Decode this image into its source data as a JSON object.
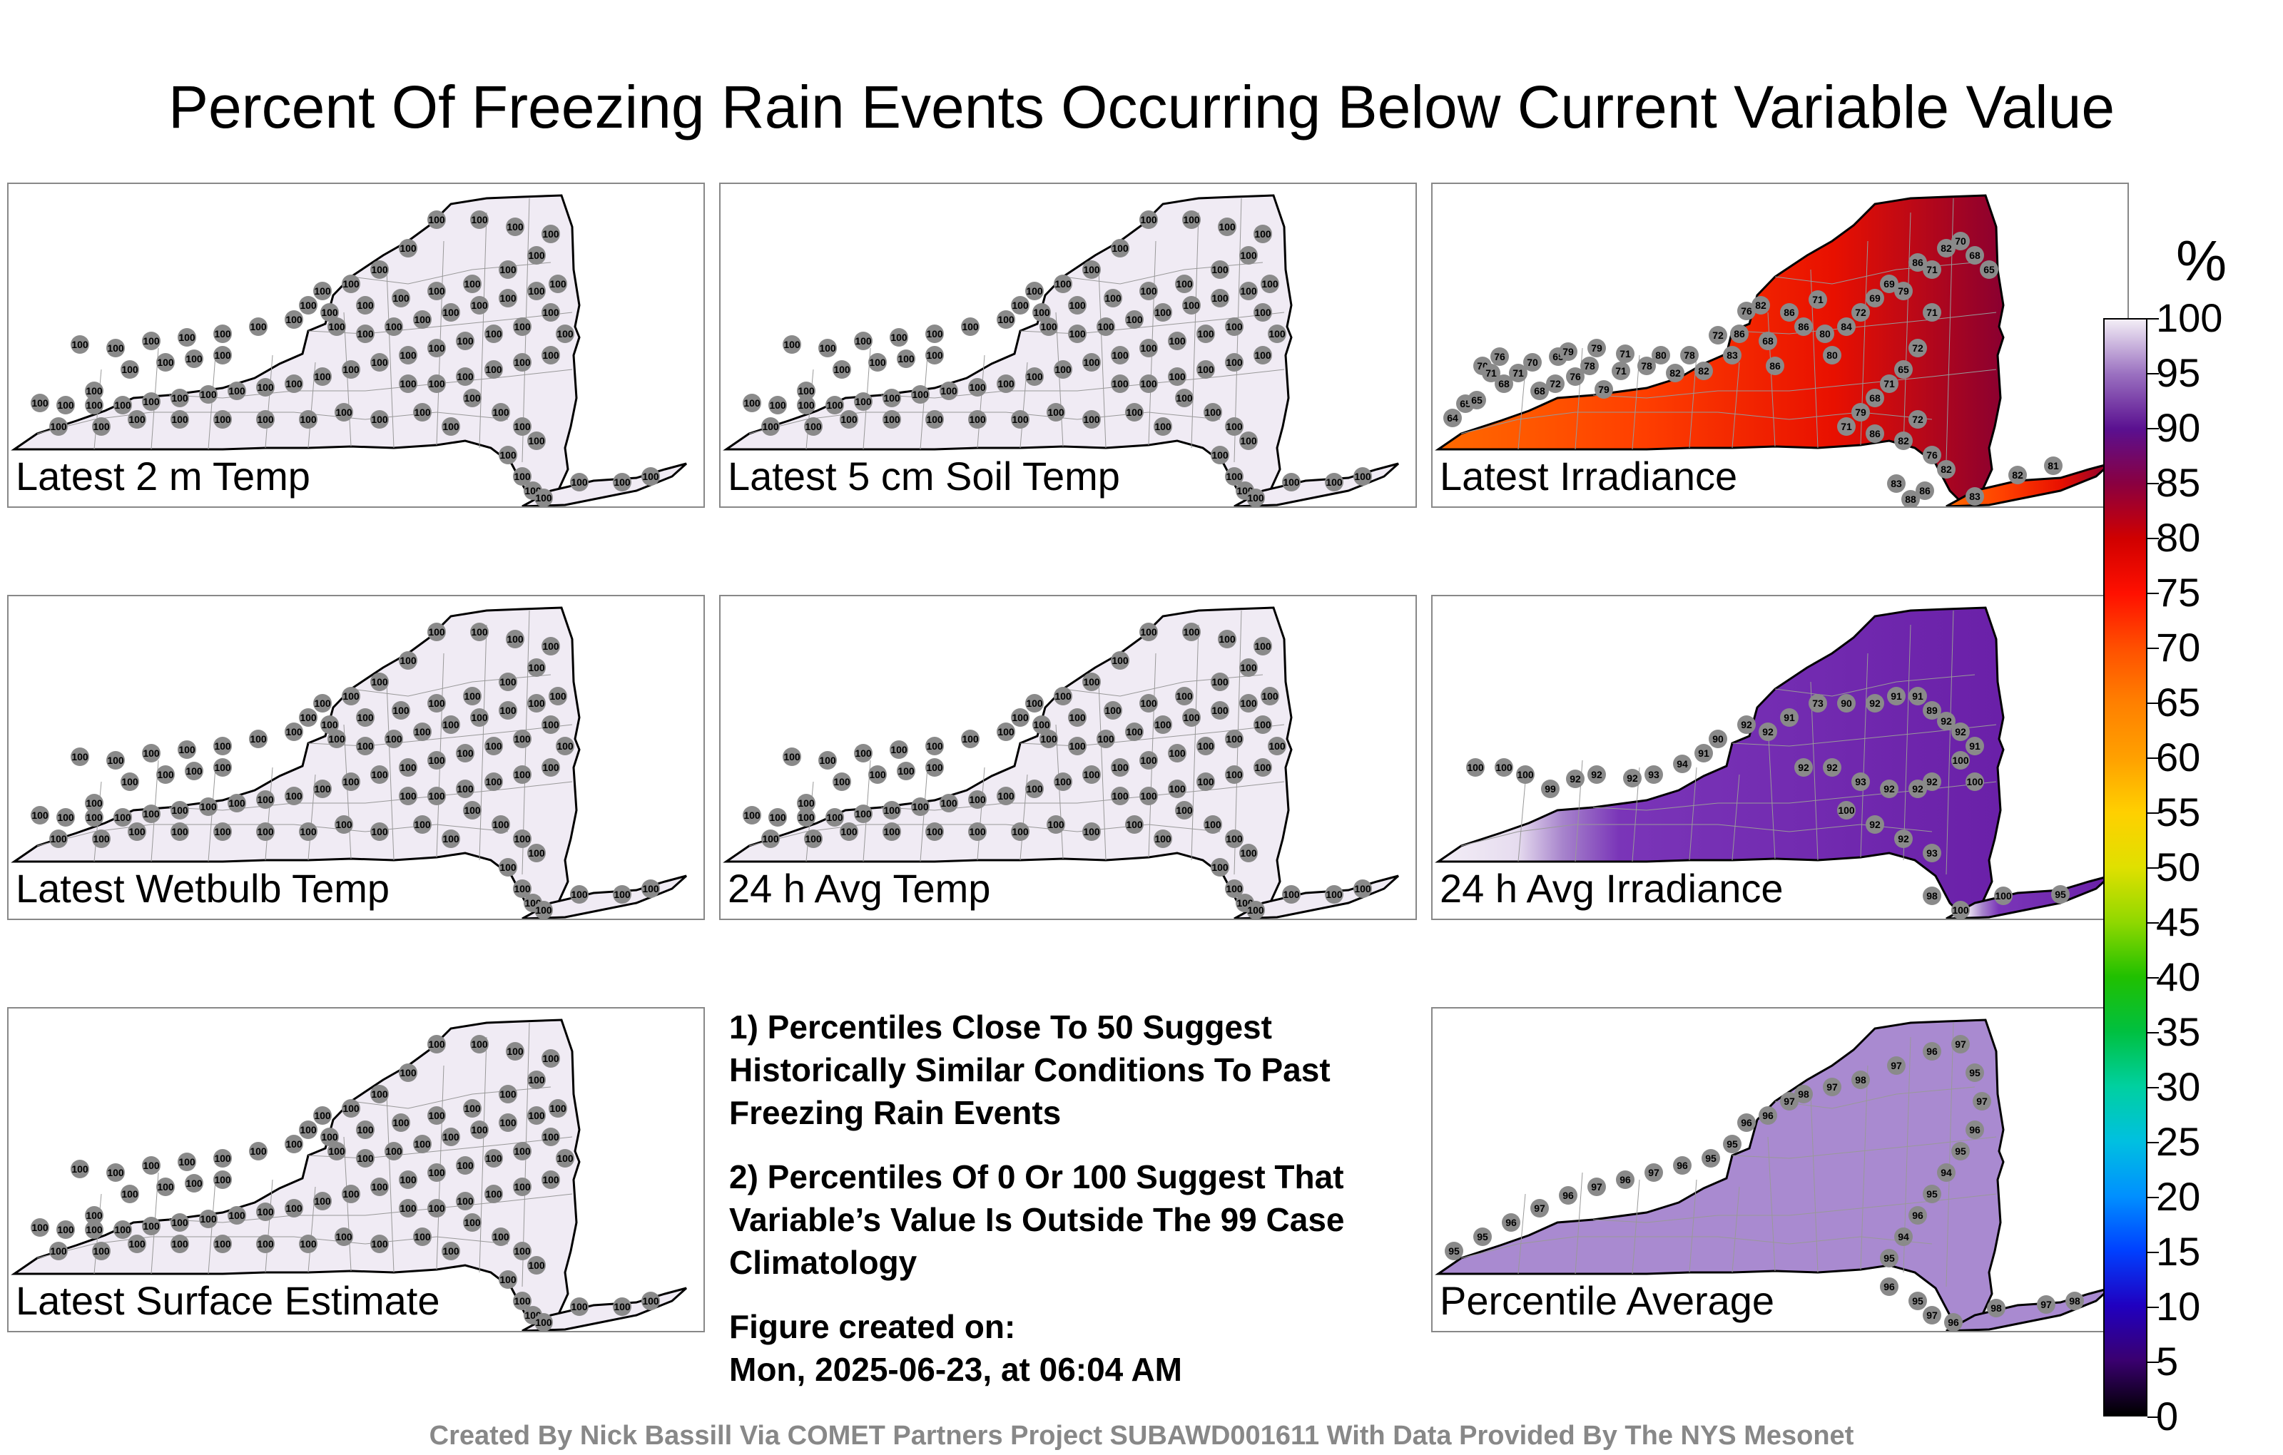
{
  "title": "Percent Of Freezing Rain Events Occurring Below Current Variable Value",
  "colors": {
    "low_fill": "#f0ebf4",
    "dot": "#8a8a8a",
    "state_border": "#000000",
    "county_line": "#999999"
  },
  "panels": [
    {
      "label": "Latest 2 m Temp",
      "field": "uniform",
      "station_value": "100"
    },
    {
      "label": "Latest 5 cm Soil Temp",
      "field": "uniform",
      "station_value": "100"
    },
    {
      "label": "Latest Irradiance",
      "field": "irradiance",
      "station_values": [
        "64",
        "65",
        "65",
        "70",
        "71",
        "76",
        "68",
        "71",
        "70",
        "68",
        "72",
        "65",
        "79",
        "76",
        "78",
        "79",
        "79",
        "71",
        "71",
        "78",
        "80",
        "82",
        "78",
        "82",
        "72",
        "83",
        "86",
        "76",
        "82",
        "68",
        "86",
        "86",
        "86",
        "71",
        "80",
        "80",
        "84",
        "72",
        "69",
        "69",
        "79",
        "86",
        "71",
        "82",
        "70",
        "68",
        "65",
        "71",
        "72",
        "65",
        "71",
        "68",
        "79",
        "71",
        "86",
        "82",
        "72",
        "76",
        "82",
        "83",
        "88",
        "86",
        "83",
        "82",
        "81"
      ]
    },
    {
      "label": "Latest Wetbulb Temp",
      "field": "uniform",
      "station_value": "100"
    },
    {
      "label": "24 h Avg Temp",
      "field": "uniform",
      "station_value": "100"
    },
    {
      "label": "24 h Avg Irradiance",
      "field": "avg_irradiance",
      "station_values": [
        "100",
        "100",
        "100",
        "99",
        "92",
        "92",
        "92",
        "93",
        "94",
        "91",
        "90",
        "92",
        "92",
        "91",
        "73",
        "90",
        "92",
        "91",
        "91",
        "89",
        "92",
        "92",
        "91",
        "92",
        "92",
        "93",
        "92",
        "92",
        "92",
        "100",
        "100",
        "100",
        "92",
        "92",
        "93",
        "98",
        "100",
        "100",
        "95"
      ]
    },
    {
      "label": "Latest Surface Estimate",
      "field": "uniform",
      "station_value": "100"
    },
    null,
    {
      "label": "Percentile Average",
      "field": "average",
      "station_values": [
        "95",
        "95",
        "96",
        "97",
        "96",
        "97",
        "96",
        "97",
        "96",
        "95",
        "95",
        "96",
        "96",
        "97",
        "98",
        "97",
        "98",
        "97",
        "96",
        "97",
        "95",
        "97",
        "96",
        "95",
        "94",
        "95",
        "96",
        "94",
        "95",
        "96",
        "95",
        "97",
        "96",
        "98",
        "97",
        "98"
      ]
    }
  ],
  "notes": [
    "1) Percentiles Close To 50 Suggest Historically Similar Conditions To Past Freezing Rain Events",
    "2) Percentiles Of 0 Or 100 Suggest That Variable’s Value Is Outside The 99 Case Climatology",
    "Figure created on:",
    "Mon, 2025-06-23, at 06:04 AM"
  ],
  "colorbar": {
    "unit": "%",
    "ticks": [
      "100",
      "95",
      "90",
      "85",
      "80",
      "75",
      "70",
      "65",
      "60",
      "55",
      "50",
      "45",
      "40",
      "35",
      "30",
      "25",
      "20",
      "15",
      "10",
      "5",
      "0"
    ]
  },
  "footer": "Created By Nick Bassill Via COMET Partners Project SUBAWD001611 With Data Provided By The NYS Mesonet"
}
